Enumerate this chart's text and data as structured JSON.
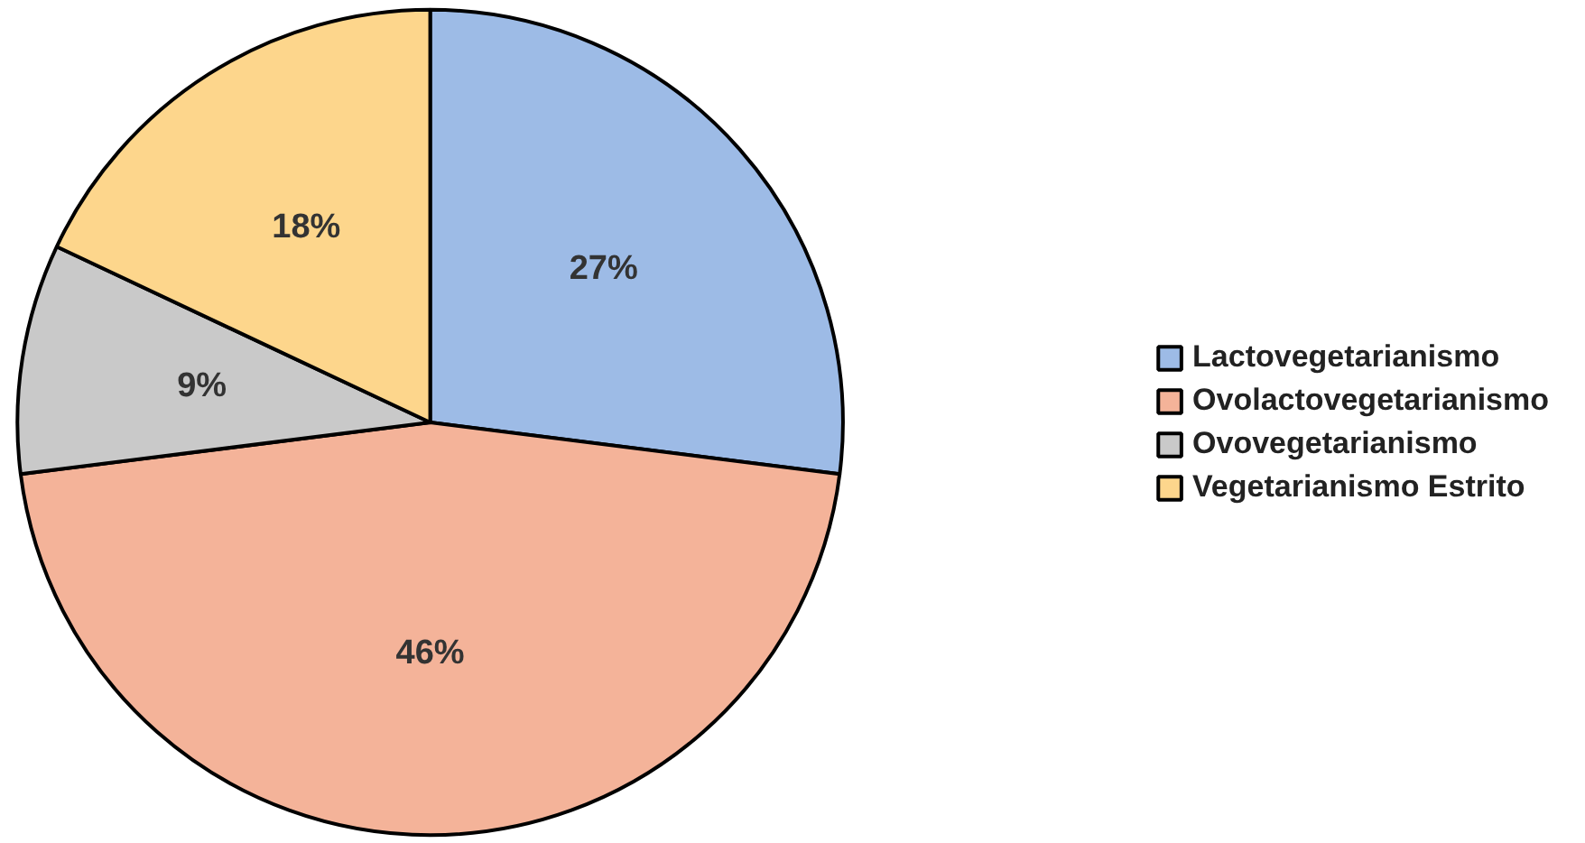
{
  "chart_data": {
    "type": "pie",
    "categories": [
      "Lactovegetarianismo",
      "Ovolactovegetarianismo",
      "Ovovegetarianismo",
      "Vegetarianismo Estrito"
    ],
    "values": [
      27,
      46,
      9,
      18
    ],
    "value_labels": [
      "27%",
      "46%",
      "9%",
      "18%"
    ],
    "colors": [
      "#9dbbe6",
      "#f4b399",
      "#c9c9c9",
      "#fdd68c"
    ],
    "legend": "right"
  }
}
